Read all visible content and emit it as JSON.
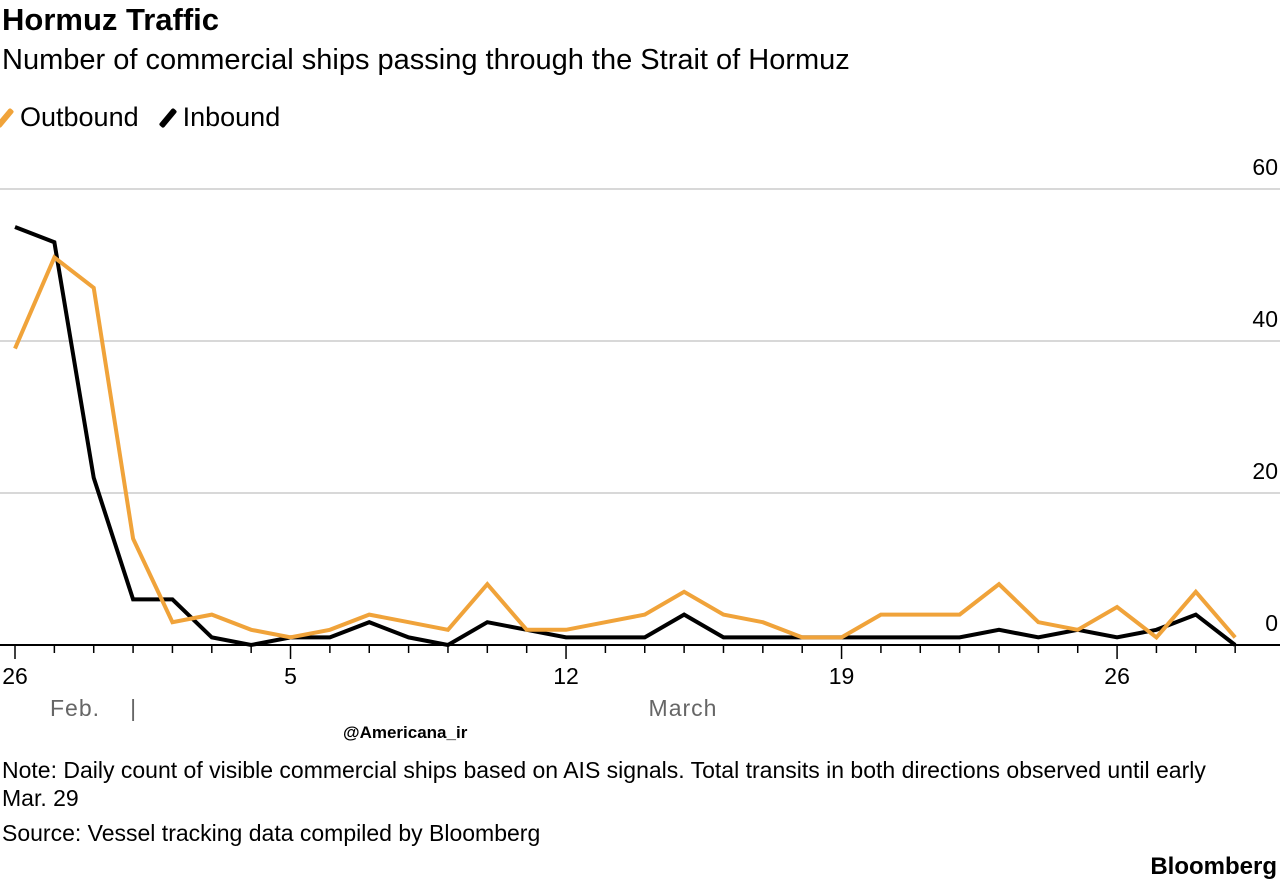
{
  "colors": {
    "outbound": "#F0A33A",
    "inbound": "#000000",
    "grid": "#cccccc"
  },
  "chart_data": {
    "type": "line",
    "title": "Hormuz Traffic",
    "subtitle": "Number of commercial ships passing through the Strait of Hormuz",
    "x": [
      "2026-02-26",
      "2026-02-27",
      "2026-02-28",
      "2026-03-01",
      "2026-03-02",
      "2026-03-03",
      "2026-03-04",
      "2026-03-05",
      "2026-03-06",
      "2026-03-07",
      "2026-03-08",
      "2026-03-09",
      "2026-03-10",
      "2026-03-11",
      "2026-03-12",
      "2026-03-13",
      "2026-03-14",
      "2026-03-15",
      "2026-03-16",
      "2026-03-17",
      "2026-03-18",
      "2026-03-19",
      "2026-03-20",
      "2026-03-21",
      "2026-03-22",
      "2026-03-23",
      "2026-03-24",
      "2026-03-25",
      "2026-03-26",
      "2026-03-27",
      "2026-03-28",
      "2026-03-29"
    ],
    "series": [
      {
        "name": "Outbound",
        "values": [
          39,
          51,
          47,
          14,
          3,
          4,
          2,
          1,
          2,
          4,
          3,
          2,
          8,
          2,
          2,
          3,
          4,
          7,
          4,
          3,
          1,
          1,
          4,
          4,
          4,
          8,
          3,
          2,
          5,
          1,
          7,
          1
        ]
      },
      {
        "name": "Inbound",
        "values": [
          55,
          53,
          22,
          6,
          6,
          1,
          0,
          1,
          1,
          3,
          1,
          0,
          3,
          2,
          1,
          1,
          1,
          4,
          1,
          1,
          1,
          1,
          1,
          1,
          1,
          2,
          1,
          2,
          1,
          2,
          4,
          0
        ]
      }
    ],
    "ylim": [
      0,
      60
    ],
    "yticks": [
      "0",
      "20",
      "40",
      "60"
    ],
    "xtick_labels": [
      {
        "date": "2026-02-26",
        "label": "26"
      },
      {
        "date": "2026-03-05",
        "label": "5"
      },
      {
        "date": "2026-03-12",
        "label": "12"
      },
      {
        "date": "2026-03-19",
        "label": "19"
      },
      {
        "date": "2026-03-26",
        "label": "26"
      }
    ],
    "month_labels": [
      "Feb.",
      "March"
    ],
    "month_separator": "|",
    "grid": true,
    "y_axis_side": "right",
    "legend_placement": "top-left"
  },
  "note": "Note: Daily count of visible commercial ships based on AIS signals. Total transits in both directions observed until early Mar. 29",
  "source": "Source: Vessel tracking data compiled by Bloomberg",
  "brand": "Bloomberg",
  "watermark": "@Americana_ir"
}
